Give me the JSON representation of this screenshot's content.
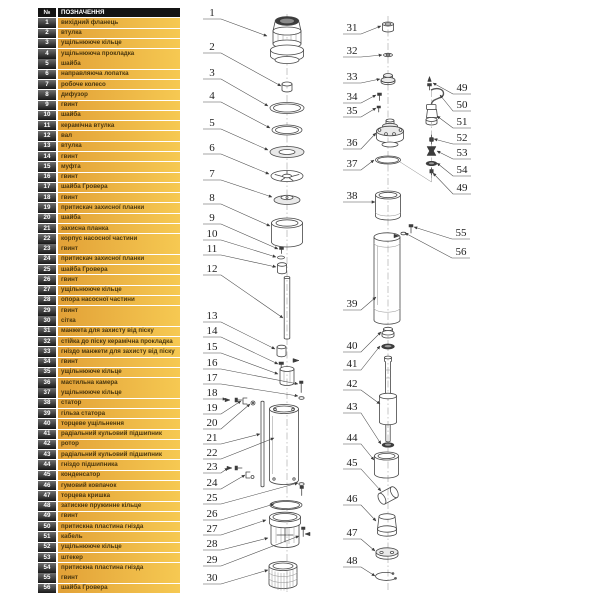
{
  "table": {
    "headers": {
      "num": "№",
      "name": "ПОЗНАЧЕННЯ"
    },
    "rows": [
      {
        "num": "1",
        "name": "вихідний фланець"
      },
      {
        "num": "2",
        "name": "втулка"
      },
      {
        "num": "3",
        "name": "ущільнююче кільце"
      },
      {
        "num": "4",
        "name": "ущільнююча прокладка"
      },
      {
        "num": "5",
        "name": "шайба"
      },
      {
        "num": "6",
        "name": "направляюча лопатка"
      },
      {
        "num": "7",
        "name": "робоче колесо"
      },
      {
        "num": "8",
        "name": "дифузор"
      },
      {
        "num": "9",
        "name": "гвинт"
      },
      {
        "num": "10",
        "name": "шайба"
      },
      {
        "num": "11",
        "name": "керамічна втулка"
      },
      {
        "num": "12",
        "name": "вал"
      },
      {
        "num": "13",
        "name": "втулка"
      },
      {
        "num": "14",
        "name": "гвинт"
      },
      {
        "num": "15",
        "name": "муфта"
      },
      {
        "num": "16",
        "name": "гвинт"
      },
      {
        "num": "17",
        "name": "шайба Гровера"
      },
      {
        "num": "18",
        "name": "гвинт"
      },
      {
        "num": "19",
        "name": "притискач захисної планки"
      },
      {
        "num": "20",
        "name": "шайба"
      },
      {
        "num": "21",
        "name": "захисна планка"
      },
      {
        "num": "22",
        "name": "корпус насосної частини"
      },
      {
        "num": "23",
        "name": "гвинт"
      },
      {
        "num": "24",
        "name": "притискач захисної планки"
      },
      {
        "num": "25",
        "name": "шайба Гровера"
      },
      {
        "num": "26",
        "name": "гвинт"
      },
      {
        "num": "27",
        "name": "ущільнююче кільце"
      },
      {
        "num": "28",
        "name": "опора насосної частини"
      },
      {
        "num": "29",
        "name": "гвинт"
      },
      {
        "num": "30",
        "name": "сітка"
      },
      {
        "num": "31",
        "name": "манжета для захисту від піску"
      },
      {
        "num": "32",
        "name": "стійка до піску керамічна прокладка"
      },
      {
        "num": "33",
        "name": "гніздо манжети для захисту від піску"
      },
      {
        "num": "34",
        "name": "гвинт"
      },
      {
        "num": "35",
        "name": "ущільнююче кільце"
      },
      {
        "num": "36",
        "name": "мастильна камера"
      },
      {
        "num": "37",
        "name": "ущільнююче кільце"
      },
      {
        "num": "38",
        "name": "статор"
      },
      {
        "num": "39",
        "name": "гільза статора"
      },
      {
        "num": "40",
        "name": "торцеве ущільнення"
      },
      {
        "num": "41",
        "name": "радіальний кульовий підшипник"
      },
      {
        "num": "42",
        "name": "ротор"
      },
      {
        "num": "43",
        "name": "радіальний кульовий підшипник"
      },
      {
        "num": "44",
        "name": "гніздо підшипника"
      },
      {
        "num": "45",
        "name": "конденсатор"
      },
      {
        "num": "46",
        "name": "гумовий ковпачок"
      },
      {
        "num": "47",
        "name": "торцева кришка"
      },
      {
        "num": "48",
        "name": "затискне пружинне кільце"
      },
      {
        "num": "49",
        "name": "гвинт"
      },
      {
        "num": "50",
        "name": "притискна пластина гнізда"
      },
      {
        "num": "51",
        "name": "кабель"
      },
      {
        "num": "52",
        "name": "ущільнююче кільце"
      },
      {
        "num": "53",
        "name": "штекер"
      },
      {
        "num": "54",
        "name": "притискна пластина гнізда"
      },
      {
        "num": "55",
        "name": "гвинт"
      },
      {
        "num": "56",
        "name": "шайба Гровера"
      }
    ]
  },
  "diagram": {
    "callouts": [
      "1",
      "2",
      "3",
      "4",
      "5",
      "6",
      "7",
      "8",
      "9",
      "10",
      "11",
      "12",
      "13",
      "14",
      "15",
      "16",
      "17",
      "18",
      "19",
      "20",
      "21",
      "22",
      "23",
      "24",
      "25",
      "26",
      "27",
      "28",
      "29",
      "30",
      "31",
      "32",
      "33",
      "34",
      "35",
      "36",
      "37",
      "38",
      "39",
      "40",
      "41",
      "42",
      "43",
      "44",
      "45",
      "46",
      "47",
      "48",
      "49",
      "50",
      "51",
      "52",
      "53",
      "54",
      "49",
      "55",
      "56"
    ],
    "colors": {
      "table_header": "#141414",
      "row_orange": "#e2a137",
      "row_orange_light": "#f6c952",
      "line": "#474747",
      "dark_part": "#3c3c3c"
    }
  }
}
